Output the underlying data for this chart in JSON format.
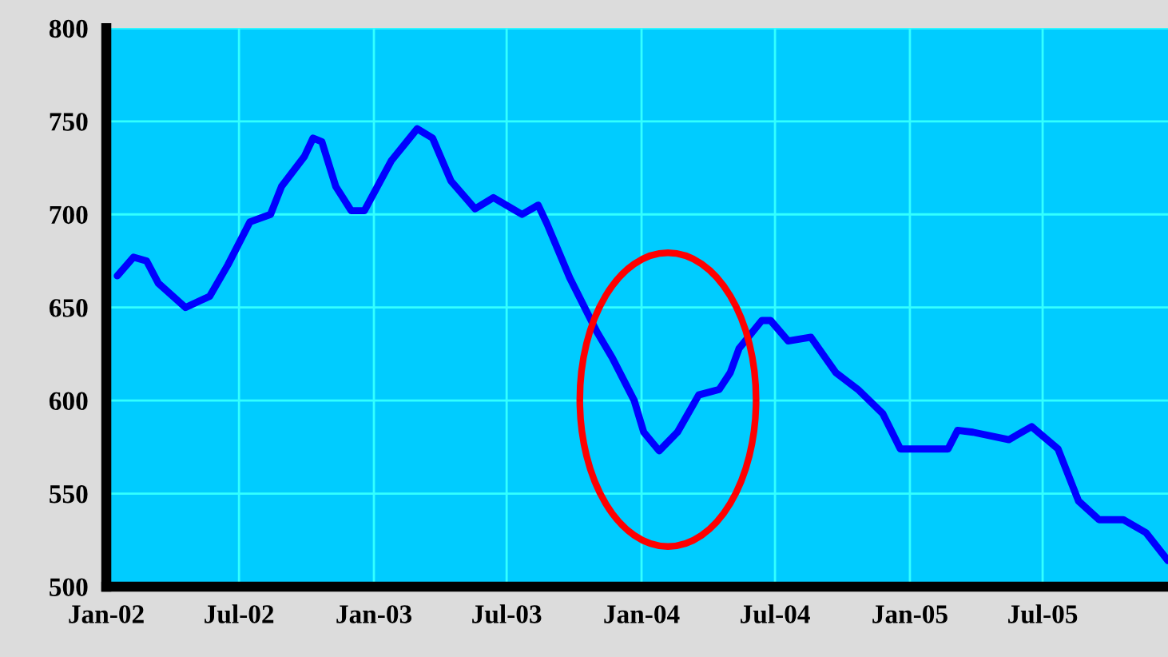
{
  "chart_data": {
    "type": "line",
    "x": [
      "2002-01-16",
      "2002-02-07",
      "2002-02-25",
      "2002-03-13",
      "2002-04-19",
      "2002-05-22",
      "2002-06-16",
      "2002-07-16",
      "2002-08-13",
      "2002-08-28",
      "2002-09-28",
      "2002-10-10",
      "2002-10-22",
      "2002-11-10",
      "2002-12-01",
      "2002-12-19",
      "2003-01-25",
      "2003-03-01",
      "2003-03-22",
      "2003-04-16",
      "2003-05-19",
      "2003-06-13",
      "2003-07-22",
      "2003-08-13",
      "2003-08-25",
      "2003-09-25",
      "2003-11-01",
      "2003-11-22",
      "2003-12-22",
      "2004-01-04",
      "2004-01-25",
      "2004-02-19",
      "2004-03-19",
      "2004-04-16",
      "2004-05-01",
      "2004-05-13",
      "2004-06-13",
      "2004-06-25",
      "2004-07-19",
      "2004-08-19",
      "2004-09-22",
      "2004-10-22",
      "2004-11-25",
      "2004-12-19",
      "2005-02-22",
      "2005-03-07",
      "2005-03-28",
      "2005-05-16",
      "2005-06-16",
      "2005-07-22",
      "2005-08-19",
      "2005-09-16",
      "2005-10-19",
      "2005-11-19",
      "2005-12-19"
    ],
    "series": [
      {
        "color": "#0000ff",
        "values": [
          667,
          677,
          675,
          663,
          650,
          656,
          673,
          696,
          700,
          715,
          731,
          741,
          739,
          715,
          702,
          702,
          729,
          746,
          741,
          718,
          703,
          709,
          700,
          705,
          695,
          666,
          637,
          623,
          600,
          583,
          573,
          583,
          603,
          606,
          615,
          628,
          643,
          643,
          632,
          634,
          615,
          606,
          593,
          574,
          574,
          584,
          583,
          579,
          586,
          574,
          546,
          536,
          536,
          529,
          514
        ]
      }
    ],
    "xlim": [
      "2002-01-01",
      "2005-12-19"
    ],
    "xticks": [
      {
        "value": "2002-01-01",
        "label": "Jan-02"
      },
      {
        "value": "2002-07-01",
        "label": "Jul-02"
      },
      {
        "value": "2003-01-01",
        "label": "Jan-03"
      },
      {
        "value": "2003-07-01",
        "label": "Jul-03"
      },
      {
        "value": "2004-01-01",
        "label": "Jan-04"
      },
      {
        "value": "2004-07-01",
        "label": "Jul-04"
      },
      {
        "value": "2005-01-01",
        "label": "Jan-05"
      },
      {
        "value": "2005-07-01",
        "label": "Jul-05"
      }
    ],
    "ylim": [
      500,
      800
    ],
    "yticks": [
      500,
      550,
      600,
      650,
      700,
      750,
      800
    ],
    "grid": true,
    "line_style": "solid",
    "marker": "none"
  }
}
